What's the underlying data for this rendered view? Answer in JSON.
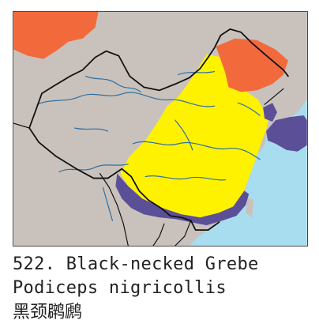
{
  "species": {
    "line1": "522. Black-necked Grebe",
    "line2": "Podiceps nigricollis",
    "line3": "黑颈䴙䴘"
  },
  "map": {
    "colors": {
      "sea": "#a8dcef",
      "land": "#c9c2bc",
      "summer_range": "#f26a3c",
      "migration_range": "#fff200",
      "winter_range": "#5b4f97",
      "border": "#111111",
      "river": "#2e6f9f"
    }
  }
}
